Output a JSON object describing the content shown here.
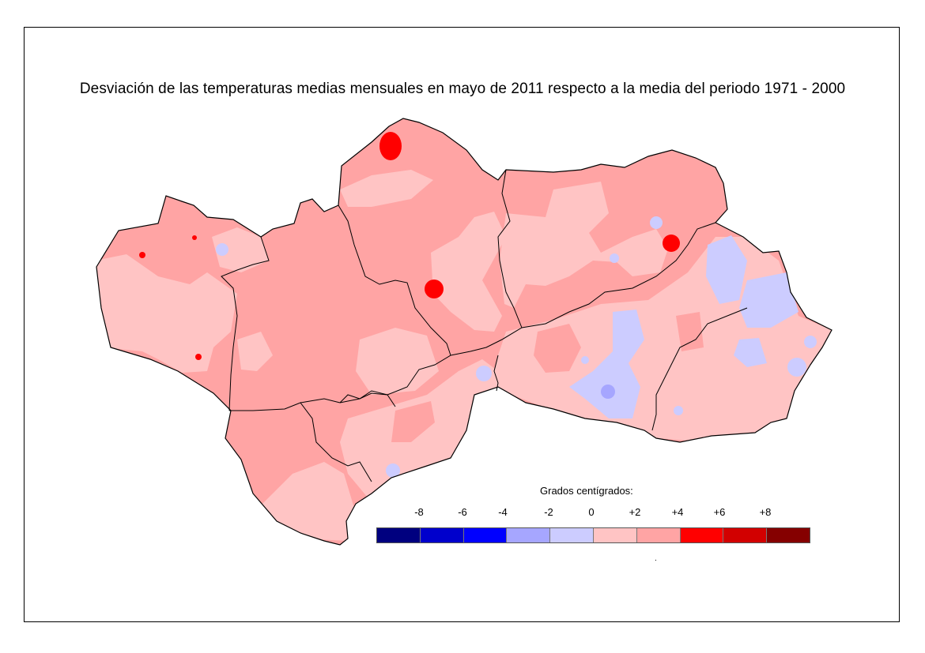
{
  "title": "Desviación de las temperaturas medias mensuales en mayo de 2011 respecto a la media del periodo 1971 - 2000",
  "legend": {
    "title": "Grados centígrados:",
    "ticks": [
      "-8",
      "-6",
      "-4",
      "-2",
      "0",
      "+2",
      "+4",
      "+6",
      "+8"
    ],
    "colors": [
      "#00007f",
      "#0000cc",
      "#0000ff",
      "#a6a6ff",
      "#ccccff",
      "#ffc4c4",
      "#ffa4a4",
      "#ff0000",
      "#d20000",
      "#850000"
    ],
    "dot": "."
  },
  "map_colors": {
    "dominant": "#ffa4a4",
    "light": "#ffc4c4",
    "cool": "#ccccff",
    "cooler": "#a6a6ff",
    "hot": "#ff0000",
    "border": "#000000"
  }
}
